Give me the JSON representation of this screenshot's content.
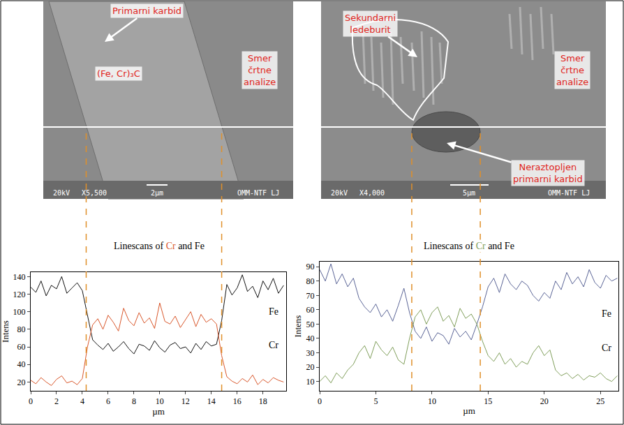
{
  "images": [
    {
      "labels": [
        "Primarni karbid",
        "(Fe, Cr)₃C",
        "Smer črtne analize"
      ],
      "info_bar": [
        "20kV",
        "X5,500",
        "2µm",
        "OMM-NTF LJ"
      ]
    },
    {
      "labels": [
        "Sekundarni ledeburit",
        "Smer črtne analize",
        "Neraztopljen primarni karbid"
      ],
      "info_bar": [
        "20kV",
        "X4,000",
        "5µm",
        "OMM-NTF LJ"
      ]
    }
  ],
  "chart_data": [
    {
      "type": "line",
      "title": "Linescans of Cr and Fe",
      "x_label": "µm",
      "y_label": "Intens",
      "x": [
        0,
        0.4,
        0.8,
        1.2,
        1.6,
        2,
        2.4,
        2.8,
        3.2,
        3.6,
        4,
        4.4,
        4.8,
        5.2,
        5.6,
        6,
        6.4,
        6.8,
        7.2,
        7.6,
        8,
        8.4,
        8.8,
        9.2,
        9.6,
        10,
        10.4,
        10.8,
        11.2,
        11.6,
        12,
        12.4,
        12.8,
        13.2,
        13.6,
        14,
        14.4,
        14.8,
        15.2,
        15.6,
        16,
        16.4,
        16.8,
        17.2,
        17.6,
        18,
        18.4,
        18.8,
        19.2,
        19.6
      ],
      "series": [
        {
          "name": "Fe",
          "color": "#111111",
          "values": [
            128,
            122,
            135,
            118,
            130,
            126,
            140,
            121,
            127,
            133,
            124,
            95,
            68,
            62,
            57,
            64,
            55,
            60,
            66,
            58,
            52,
            63,
            61,
            56,
            67,
            59,
            54,
            62,
            65,
            58,
            60,
            53,
            64,
            57,
            66,
            61,
            63,
            90,
            131,
            119,
            127,
            142,
            123,
            129,
            116,
            135,
            125,
            138,
            121,
            130
          ]
        },
        {
          "name": "Cr",
          "color": "#d9572b",
          "values": [
            22,
            18,
            25,
            20,
            16,
            23,
            27,
            19,
            21,
            17,
            24,
            60,
            85,
            92,
            80,
            96,
            88,
            78,
            104,
            90,
            84,
            99,
            87,
            93,
            81,
            110,
            89,
            86,
            95,
            82,
            91,
            100,
            83,
            97,
            88,
            92,
            86,
            50,
            26,
            21,
            18,
            24,
            20,
            28,
            17,
            23,
            19,
            25,
            22,
            20
          ]
        }
      ],
      "xlim": [
        0,
        19.8
      ],
      "xticks": [
        0,
        2,
        4,
        6,
        8,
        10,
        12,
        14,
        16,
        18
      ],
      "ylim": [
        10,
        145
      ],
      "yticks": [
        20,
        40,
        60,
        80,
        100,
        120,
        140
      ],
      "interfaces": [
        4.3,
        14.8
      ],
      "grid": false
    },
    {
      "type": "line",
      "title": "Linescans of Cr and Fe",
      "x_label": "µm",
      "y_label": "Intens",
      "x": [
        0,
        0.5,
        1,
        1.5,
        2,
        2.5,
        3,
        3.5,
        4,
        4.5,
        5,
        5.5,
        6,
        6.5,
        7,
        7.5,
        8,
        8.5,
        9,
        9.5,
        10,
        10.5,
        11,
        11.5,
        12,
        12.5,
        13,
        13.5,
        14,
        14.5,
        15,
        15.5,
        16,
        16.5,
        17,
        17.5,
        18,
        18.5,
        19,
        19.5,
        20,
        20.5,
        21,
        21.5,
        22,
        22.5,
        23,
        23.5,
        24,
        24.5,
        25,
        25.5,
        26,
        26.5
      ],
      "series": [
        {
          "name": "Fe",
          "color": "#5a6496",
          "values": [
            88,
            80,
            92,
            78,
            85,
            76,
            82,
            68,
            62,
            58,
            64,
            55,
            60,
            52,
            63,
            75,
            58,
            45,
            40,
            48,
            38,
            44,
            42,
            36,
            47,
            41,
            45,
            39,
            50,
            62,
            76,
            82,
            72,
            85,
            78,
            74,
            80,
            77,
            70,
            66,
            72,
            68,
            80,
            74,
            86,
            78,
            83,
            76,
            88,
            79,
            75,
            84,
            80,
            82
          ]
        },
        {
          "name": "Cr",
          "color": "#7f9e5a",
          "values": [
            10,
            14,
            9,
            16,
            12,
            18,
            22,
            30,
            35,
            26,
            38,
            32,
            28,
            34,
            25,
            22,
            40,
            55,
            60,
            50,
            58,
            62,
            52,
            56,
            48,
            61,
            54,
            57,
            50,
            38,
            28,
            24,
            30,
            22,
            26,
            20,
            24,
            22,
            30,
            35,
            28,
            32,
            18,
            14,
            16,
            12,
            15,
            11,
            14,
            13,
            16,
            12,
            10,
            14
          ]
        }
      ],
      "xlim": [
        0,
        26.6
      ],
      "xticks": [
        0,
        5,
        10,
        15,
        20,
        25
      ],
      "ylim": [
        3.5,
        93.5
      ],
      "yticks": [
        10,
        20,
        30,
        40,
        50,
        60,
        70,
        80,
        90
      ],
      "interfaces": [
        8.2,
        14.3
      ],
      "grid": false
    }
  ]
}
